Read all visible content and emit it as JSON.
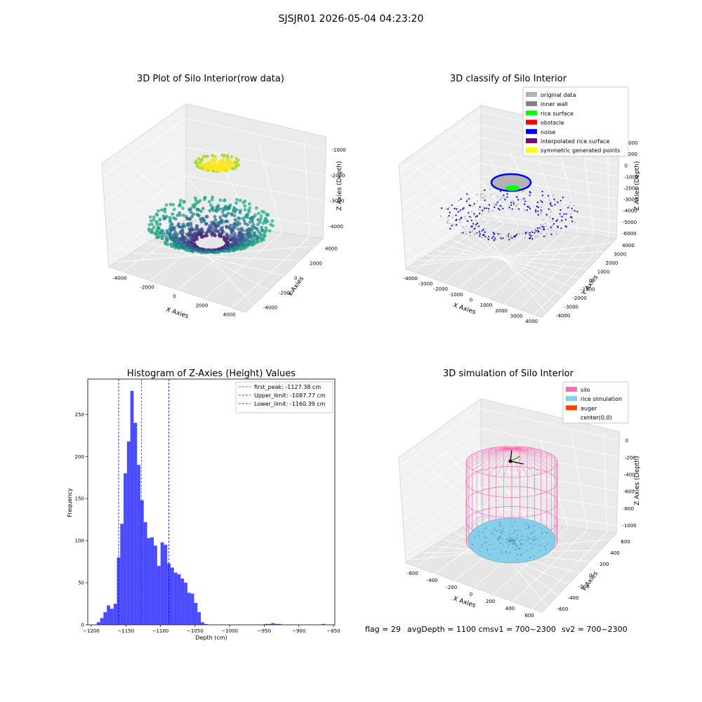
{
  "suptitle": "SJSJR01 2026-05-04 04:23:20",
  "footer": {
    "flag": "flag = 29",
    "avg": "avgDepth = 1100 cmsv1 = 700~2300",
    "sv2": "sv2 = 700~2300"
  },
  "chart_data": [
    {
      "type": "scatter",
      "title": "3D Plot of Silo Interior(row data)",
      "xlabel": "X Axies",
      "ylabel": "Y Axies",
      "zlabel": "Z Axies (Depth)",
      "x_ticks": [
        "-4000",
        "-2000",
        "0",
        "2000",
        "4000"
      ],
      "y_ticks": [
        "-4000",
        "-2000",
        "0",
        "2000",
        "4000"
      ],
      "z_ticks": [
        "-1000",
        "-2000",
        "-3000",
        "-4000"
      ],
      "colormap": "viridis"
    },
    {
      "type": "scatter",
      "title": "3D classify of Silo Interior",
      "xlabel": "X Axies",
      "ylabel": "Y Axies",
      "zlabel": "Z Axies (Depth)",
      "x_ticks": [
        "-4000",
        "-3000",
        "-2000",
        "-1000",
        "0",
        "1000",
        "2000",
        "3000",
        "4000"
      ],
      "y_ticks": [
        "-4000",
        "-3000",
        "-2000",
        "-1000",
        "0",
        "1000",
        "2000",
        "3000",
        "4000"
      ],
      "z_ticks": [
        "2000",
        "1000",
        "0",
        "-1000",
        "-2000",
        "-3000",
        "-4000",
        "-5000",
        "-6000"
      ],
      "legend": [
        {
          "label": "original data",
          "color": "#b3b3b3"
        },
        {
          "label": "inner wall",
          "color": "#808080"
        },
        {
          "label": "rice surface",
          "color": "#00ff00"
        },
        {
          "label": "obstacle",
          "color": "#ff0000"
        },
        {
          "label": "noise",
          "color": "#0000ff"
        },
        {
          "label": "interpolated rice surface",
          "color": "#800080"
        },
        {
          "label": "symmetric generated points",
          "color": "#ffff00"
        }
      ]
    },
    {
      "type": "bar",
      "title": "Histogram of Z-Axies (Height) Values",
      "xlabel": "Depth (cm)",
      "ylabel": "Frequency",
      "xlim": [
        -1205,
        -848
      ],
      "ylim": [
        0,
        292
      ],
      "x_ticks": [
        -1200,
        -1150,
        -1100,
        -1050,
        -1000,
        -950,
        -900,
        -850
      ],
      "y_ticks": [
        0,
        50,
        100,
        150,
        200,
        250
      ],
      "bar_color": "#0000ff",
      "bin_start": -1192,
      "bin_width": 4.85,
      "values": [
        3,
        8,
        15,
        23,
        19,
        25,
        80,
        120,
        180,
        218,
        278,
        240,
        190,
        148,
        122,
        103,
        104,
        94,
        70,
        98,
        95,
        73,
        68,
        62,
        60,
        55,
        50,
        38,
        37,
        26,
        15,
        3,
        1,
        0,
        0,
        0,
        0,
        0,
        0,
        0,
        0,
        0,
        0,
        0,
        0,
        0,
        0,
        0,
        0,
        0,
        1,
        1,
        2,
        1,
        1,
        0,
        0,
        0,
        0,
        0,
        0,
        0,
        0,
        0,
        0,
        0,
        0,
        1
      ],
      "vlines": [
        {
          "label": "first_peak: -1127.38 cm",
          "x": -1127.38,
          "color": "#ff0000"
        },
        {
          "label": "Upper_limit: -1087.77 cm",
          "x": -1087.77,
          "color": "#0000ff"
        },
        {
          "label": "Lower_limit: -1160.39 cm",
          "x": -1160.39,
          "color": "#0000ff"
        }
      ]
    },
    {
      "type": "scatter",
      "title": "3D simulation of Silo Interior",
      "xlabel": "X Axies",
      "ylabel": "Y Axies",
      "zlabel": "Z Axies (Depth)",
      "x_ticks": [
        "-600",
        "-400",
        "-200",
        "0",
        "200",
        "400",
        "600"
      ],
      "y_ticks": [
        "-600",
        "-400",
        "-200",
        "0",
        "200",
        "400",
        "600"
      ],
      "z_ticks": [
        "0",
        "-200",
        "-400",
        "-600",
        "-800",
        "-1000"
      ],
      "legend": [
        {
          "label": "silo",
          "color": "#ff69b4"
        },
        {
          "label": "rice simulation",
          "color": "#87ceeb"
        },
        {
          "label": "auger",
          "color": "#ff4500"
        },
        {
          "label": "center(0,0)",
          "color": "#ffffff"
        }
      ]
    }
  ]
}
